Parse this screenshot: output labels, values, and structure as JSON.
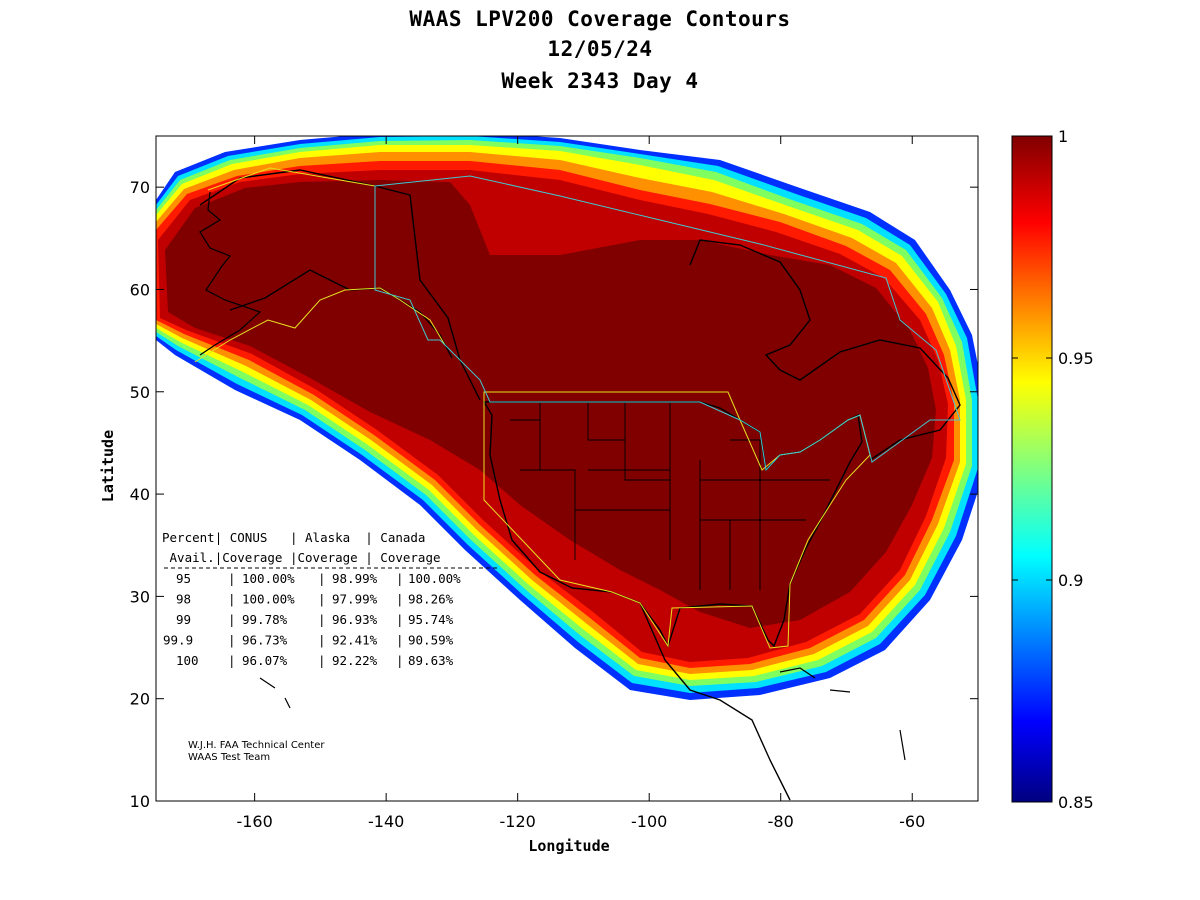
{
  "title": {
    "line1": "WAAS LPV200 Coverage Contours",
    "line2": "12/05/24",
    "line3": "Week 2343 Day 4"
  },
  "axes": {
    "xlabel": "Longitude",
    "ylabel": "Latitude",
    "xlim": [
      -175,
      -50
    ],
    "ylim": [
      10,
      75
    ],
    "xticks": [
      -160,
      -140,
      -120,
      -100,
      -80,
      -60
    ],
    "yticks": [
      10,
      20,
      30,
      40,
      50,
      60,
      70
    ]
  },
  "colorbar": {
    "min": 0.85,
    "max": 1,
    "ticks": [
      "1",
      "0.95",
      "0.9",
      "0.85"
    ],
    "colormap": "jet"
  },
  "coverage_table": {
    "header1": [
      "Percent",
      "CONUS",
      "Alaska",
      "Canada"
    ],
    "header2": [
      "Avail.",
      "Coverage",
      "Coverage",
      "Coverage"
    ],
    "rows": [
      {
        "pct": "95",
        "conus": "100.00%",
        "alaska": "98.99%",
        "canada": "100.00%"
      },
      {
        "pct": "98",
        "conus": "100.00%",
        "alaska": "97.99%",
        "canada": "98.26%"
      },
      {
        "pct": "99",
        "conus": "99.78%",
        "alaska": "96.93%",
        "canada": "95.74%"
      },
      {
        "pct": "99.9",
        "conus": "96.73%",
        "alaska": "92.41%",
        "canada": "90.59%"
      },
      {
        "pct": "100",
        "conus": "96.07%",
        "alaska": "92.22%",
        "canada": "89.63%"
      }
    ]
  },
  "credits": {
    "line1": "W.J.H. FAA Technical Center",
    "line2": "WAAS Test Team"
  },
  "colors": {
    "core": "#800000",
    "gradient": [
      "#000080",
      "#0000ff",
      "#00bfff",
      "#40ffbf",
      "#bfff40",
      "#ffff00",
      "#ffbf00",
      "#ff8000",
      "#ff2000",
      "#c00000",
      "#800000"
    ]
  }
}
